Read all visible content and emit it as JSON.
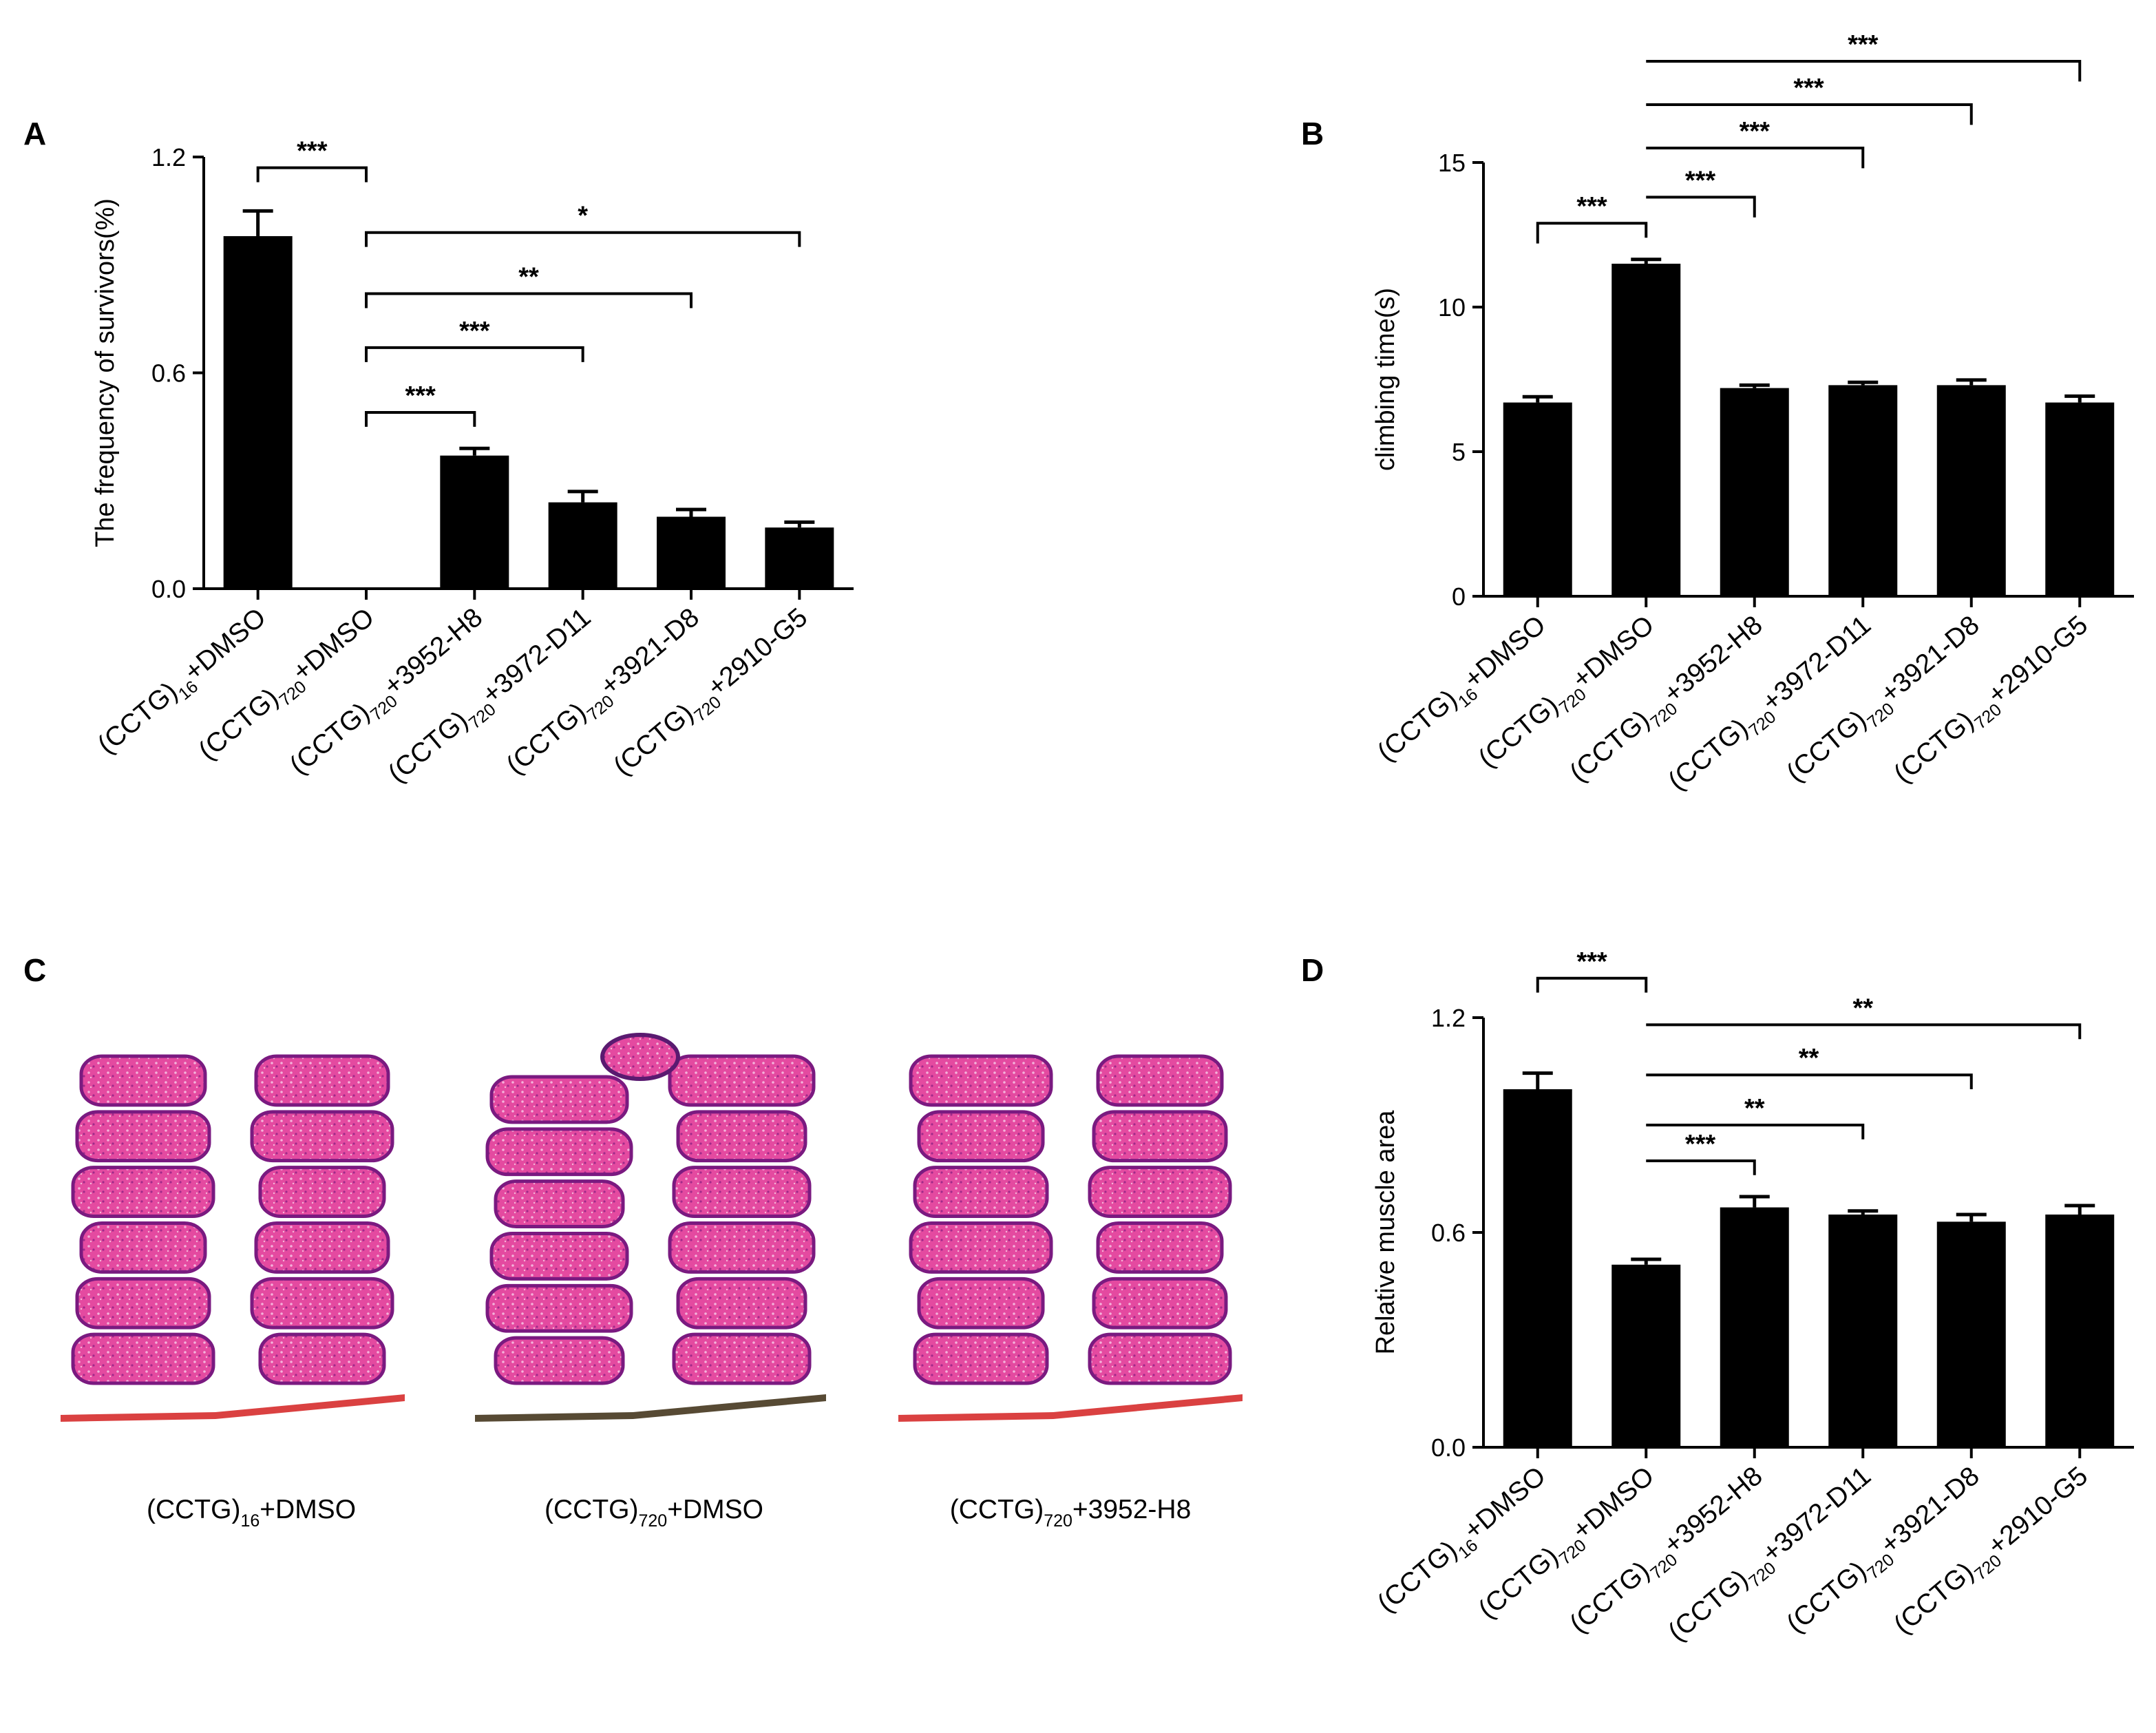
{
  "figure": {
    "panels": [
      "A",
      "B",
      "C",
      "D"
    ]
  },
  "chart_data": [
    {
      "panel": "A",
      "type": "bar",
      "ylabel": "The frequency of survivors(%)",
      "xlabel": "",
      "ylim": [
        0,
        1.2
      ],
      "yticks": [
        "0.0",
        "0.6",
        "1.2"
      ],
      "categories": [
        {
          "base": "(CCTG)",
          "sub": "16",
          "rest": "+DMSO"
        },
        {
          "base": "(CCTG)",
          "sub": "720",
          "rest": "+DMSO"
        },
        {
          "base": "(CCTG)",
          "sub": "720",
          "rest": "+3952-H8"
        },
        {
          "base": "(CCTG)",
          "sub": "720",
          "rest": "+3972-D11"
        },
        {
          "base": "(CCTG)",
          "sub": "720",
          "rest": "+3921-D8"
        },
        {
          "base": "(CCTG)",
          "sub": "720",
          "rest": "+2910-G5"
        }
      ],
      "values": [
        0.98,
        0.0,
        0.37,
        0.24,
        0.2,
        0.17
      ],
      "errors": [
        0.07,
        0.0,
        0.02,
        0.03,
        0.02,
        0.015
      ],
      "significance": [
        {
          "from": 0,
          "to": 1,
          "label": "***",
          "y": 1.17,
          "drop_from": 0.04,
          "drop_to": 0.04
        },
        {
          "from": 1,
          "to": 5,
          "label": "*",
          "y": 0.99,
          "drop_from": 0.04,
          "drop_to": 0.04
        },
        {
          "from": 1,
          "to": 4,
          "label": "**",
          "y": 0.82,
          "drop_from": 0.04,
          "drop_to": 0.04
        },
        {
          "from": 1,
          "to": 3,
          "label": "***",
          "y": 0.67,
          "drop_from": 0.04,
          "drop_to": 0.04
        },
        {
          "from": 1,
          "to": 2,
          "label": "***",
          "y": 0.49,
          "drop_from": 0.04,
          "drop_to": 0.04
        }
      ]
    },
    {
      "panel": "B",
      "type": "bar",
      "ylabel": "climbing time(s)",
      "xlabel": "",
      "ylim": [
        0,
        15
      ],
      "yticks": [
        "0",
        "5",
        "10",
        "15"
      ],
      "categories": [
        {
          "base": "(CCTG)",
          "sub": "16",
          "rest": "+DMSO"
        },
        {
          "base": "(CCTG)",
          "sub": "720",
          "rest": "+DMSO"
        },
        {
          "base": "(CCTG)",
          "sub": "720",
          "rest": "+3952-H8"
        },
        {
          "base": "(CCTG)",
          "sub": "720",
          "rest": "+3972-D11"
        },
        {
          "base": "(CCTG)",
          "sub": "720",
          "rest": "+3921-D8"
        },
        {
          "base": "(CCTG)",
          "sub": "720",
          "rest": "+2910-G5"
        }
      ],
      "values": [
        6.7,
        11.5,
        7.2,
        7.3,
        7.3,
        6.7
      ],
      "errors": [
        0.2,
        0.15,
        0.1,
        0.1,
        0.18,
        0.22
      ],
      "significance": [
        {
          "from": 0,
          "to": 1,
          "label": "***",
          "y": 12.9,
          "drop_from": 0.7,
          "drop_to": 0.5
        },
        {
          "from": 1,
          "to": 2,
          "label": "***",
          "y": 13.8,
          "drop_from": 0,
          "drop_to": 0.7
        },
        {
          "from": 1,
          "to": 3,
          "label": "***",
          "y": 15.5,
          "drop_from": 0,
          "drop_to": 0.7
        },
        {
          "from": 1,
          "to": 4,
          "label": "***",
          "y": 17.0,
          "drop_from": 0,
          "drop_to": 0.7
        },
        {
          "from": 1,
          "to": 5,
          "label": "***",
          "y": 18.5,
          "drop_from": 0,
          "drop_to": 0.7
        }
      ]
    },
    {
      "panel": "D",
      "type": "bar",
      "ylabel": "Relative muscle area",
      "xlabel": "",
      "ylim": [
        0,
        1.2
      ],
      "yticks": [
        "0.0",
        "0.6",
        "1.2"
      ],
      "categories": [
        {
          "base": "(CCTG)",
          "sub": "16",
          "rest": "+DMSO"
        },
        {
          "base": "(CCTG)",
          "sub": "720",
          "rest": "+DMSO"
        },
        {
          "base": "(CCTG)",
          "sub": "720",
          "rest": "+3952-H8"
        },
        {
          "base": "(CCTG)",
          "sub": "720",
          "rest": "+3972-D11"
        },
        {
          "base": "(CCTG)",
          "sub": "720",
          "rest": "+3921-D8"
        },
        {
          "base": "(CCTG)",
          "sub": "720",
          "rest": "+2910-G5"
        }
      ],
      "values": [
        1.0,
        0.51,
        0.67,
        0.65,
        0.63,
        0.65
      ],
      "errors": [
        0.045,
        0.015,
        0.03,
        0.01,
        0.02,
        0.025
      ],
      "significance": [
        {
          "from": 0,
          "to": 1,
          "label": "***",
          "y": 1.31,
          "drop_from": 0.04,
          "drop_to": 0.04
        },
        {
          "from": 1,
          "to": 5,
          "label": "**",
          "y": 1.18,
          "drop_from": 0,
          "drop_to": 0.04
        },
        {
          "from": 1,
          "to": 4,
          "label": "**",
          "y": 1.04,
          "drop_from": 0,
          "drop_to": 0.04
        },
        {
          "from": 1,
          "to": 3,
          "label": "**",
          "y": 0.9,
          "drop_from": 0,
          "drop_to": 0.04
        },
        {
          "from": 1,
          "to": 2,
          "label": "***",
          "y": 0.8,
          "drop_from": 0,
          "drop_to": 0.04
        }
      ]
    }
  ],
  "histology": {
    "panel": "C",
    "images": [
      {
        "base": "(CCTG)",
        "sub": "16",
        "rest": "+DMSO"
      },
      {
        "base": "(CCTG)",
        "sub": "720",
        "rest": "+DMSO"
      },
      {
        "base": "(CCTG)",
        "sub": "720",
        "rest": "+3952-H8"
      }
    ],
    "colors": {
      "tissue": "#e0409a",
      "edge": "#7a1a80",
      "highlight": "#f2a0d0",
      "debris": "#d42020"
    }
  }
}
